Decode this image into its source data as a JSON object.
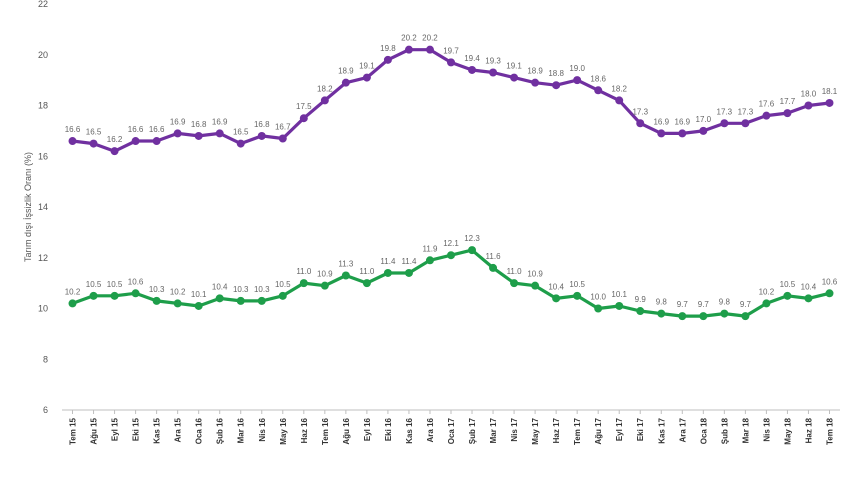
{
  "chart_data": {
    "type": "line",
    "ylabel": "Tarım dışı İşsizlik Oranı (%)",
    "ylim": [
      6,
      22
    ],
    "yticks": [
      6,
      8,
      10,
      12,
      14,
      16,
      18,
      20,
      22
    ],
    "grid": false,
    "categories": [
      "Tem 15",
      "Ağu 15",
      "Eyl 15",
      "Eki 15",
      "Kas 15",
      "Ara 15",
      "Oca 16",
      "Şub 16",
      "Mar 16",
      "Nis 16",
      "May 16",
      "Haz 16",
      "Tem 16",
      "Ağu 16",
      "Eyl 16",
      "Eki 16",
      "Kas 16",
      "Ara 16",
      "Oca 17",
      "Şub 17",
      "Mar 17",
      "Nis 17",
      "May 17",
      "Haz 17",
      "Tem 17",
      "Ağu 17",
      "Eyl 17",
      "Eki 17",
      "Kas 17",
      "Ara 17",
      "Oca 18",
      "Şub 18",
      "Mar 18",
      "Nis 18",
      "May 18",
      "Haz 18",
      "Tem 18"
    ],
    "series": [
      {
        "color": "#7030a0",
        "values": [
          16.6,
          16.5,
          16.2,
          16.6,
          16.6,
          16.9,
          16.8,
          16.9,
          16.5,
          16.8,
          16.7,
          17.5,
          18.2,
          18.9,
          19.1,
          19.8,
          20.2,
          20.2,
          19.7,
          19.4,
          19.3,
          19.1,
          18.9,
          18.8,
          19.0,
          18.6,
          18.2,
          17.3,
          16.9,
          16.9,
          17.0,
          17.3,
          17.3,
          17.6,
          17.7,
          18.0,
          18.1
        ]
      },
      {
        "color": "#1e9e4a",
        "values": [
          10.2,
          10.5,
          10.5,
          10.6,
          10.3,
          10.2,
          10.1,
          10.4,
          10.3,
          10.3,
          10.5,
          11.0,
          10.9,
          11.3,
          11.0,
          11.4,
          11.4,
          11.9,
          12.1,
          12.3,
          11.6,
          11.0,
          10.9,
          10.4,
          10.5,
          10.0,
          10.1,
          9.9,
          9.8,
          9.7,
          9.7,
          9.8,
          9.7,
          10.2,
          10.5,
          10.4,
          10.6
        ]
      }
    ]
  }
}
